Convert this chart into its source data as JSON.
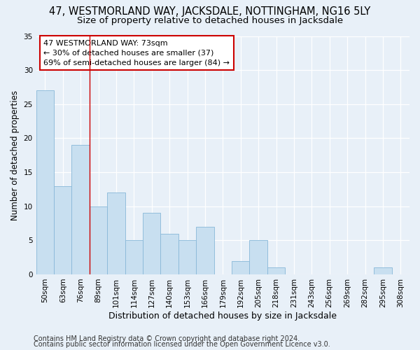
{
  "title": "47, WESTMORLAND WAY, JACKSDALE, NOTTINGHAM, NG16 5LY",
  "subtitle": "Size of property relative to detached houses in Jacksdale",
  "xlabel": "Distribution of detached houses by size in Jacksdale",
  "ylabel": "Number of detached properties",
  "categories": [
    "50sqm",
    "63sqm",
    "76sqm",
    "89sqm",
    "101sqm",
    "114sqm",
    "127sqm",
    "140sqm",
    "153sqm",
    "166sqm",
    "179sqm",
    "192sqm",
    "205sqm",
    "218sqm",
    "231sqm",
    "243sqm",
    "256sqm",
    "269sqm",
    "282sqm",
    "295sqm",
    "308sqm"
  ],
  "values": [
    27,
    13,
    19,
    10,
    12,
    5,
    9,
    6,
    5,
    7,
    0,
    2,
    5,
    1,
    0,
    0,
    0,
    0,
    0,
    1,
    0
  ],
  "bar_color": "#c8dff0",
  "bar_edge_color": "#88b8d8",
  "red_line_x": 2.5,
  "annotation_line1": "47 WESTMORLAND WAY: 73sqm",
  "annotation_line2": "← 30% of detached houses are smaller (37)",
  "annotation_line3": "69% of semi-detached houses are larger (84) →",
  "annotation_box_color": "#ffffff",
  "annotation_box_edge_color": "#cc0000",
  "ylim": [
    0,
    35
  ],
  "yticks": [
    0,
    5,
    10,
    15,
    20,
    25,
    30,
    35
  ],
  "footer_line1": "Contains HM Land Registry data © Crown copyright and database right 2024.",
  "footer_line2": "Contains public sector information licensed under the Open Government Licence v3.0.",
  "background_color": "#e8f0f8",
  "plot_background_color": "#e8f0f8",
  "grid_color": "#ffffff",
  "title_fontsize": 10.5,
  "subtitle_fontsize": 9.5,
  "xlabel_fontsize": 9,
  "ylabel_fontsize": 8.5,
  "tick_fontsize": 7.5,
  "annotation_fontsize": 8,
  "footer_fontsize": 7
}
